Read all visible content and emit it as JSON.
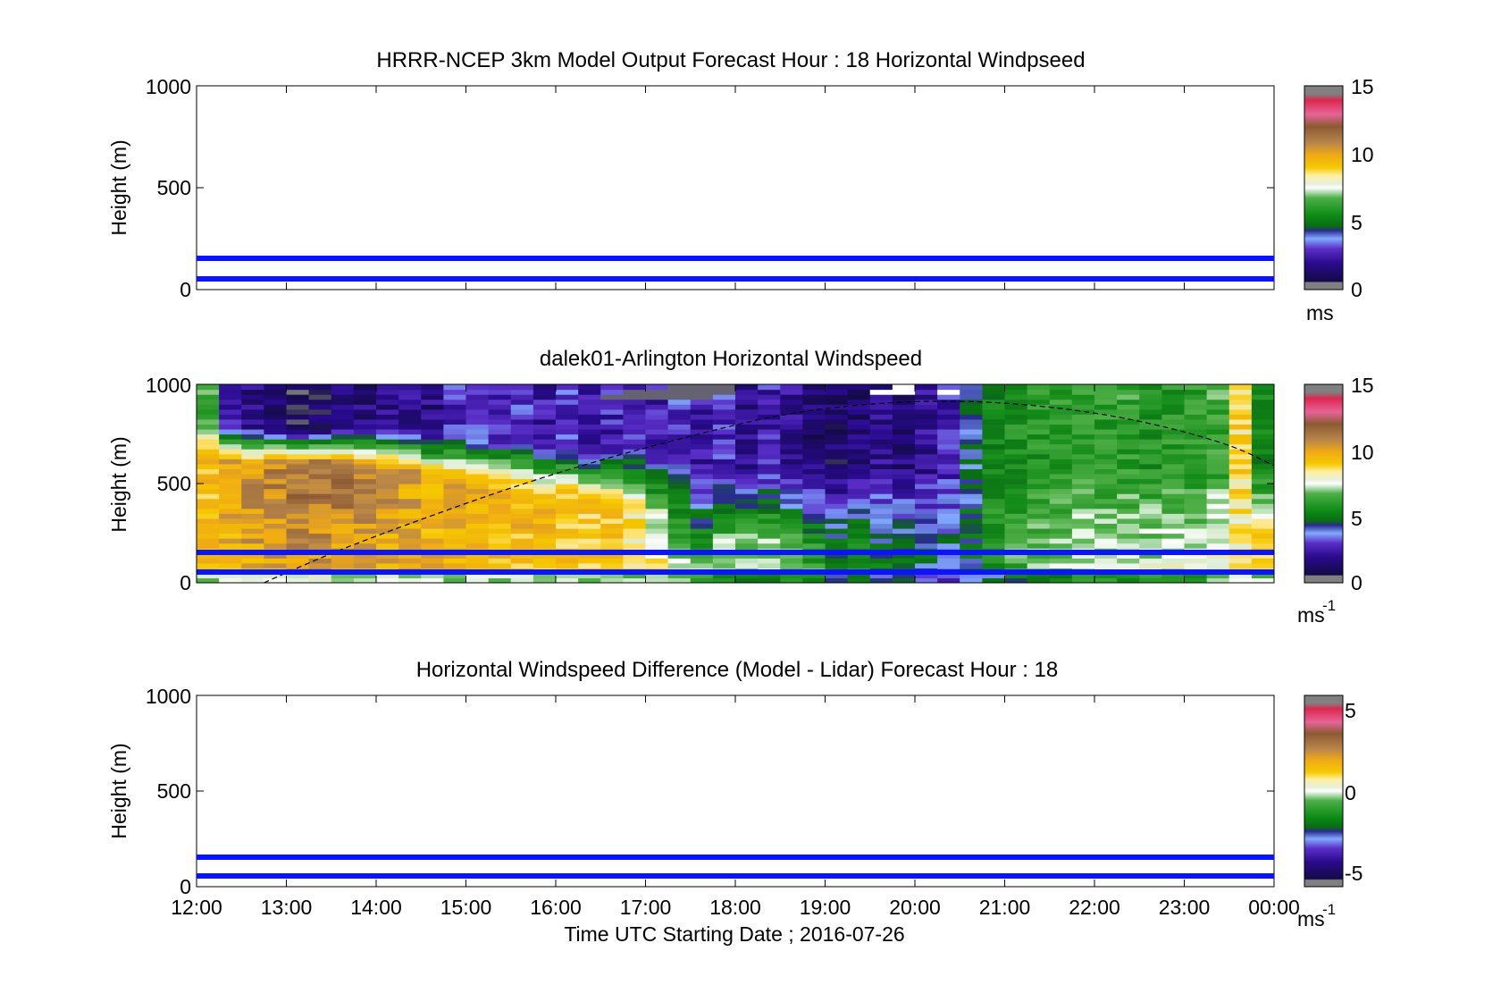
{
  "chart_data": [
    {
      "type": "heatmap",
      "title": "HRRR-NCEP 3km Model Output   Forecast Hour : 18 Horizontal Windpseed",
      "ylabel": "Height (m)",
      "xlabel": "",
      "xlim": [
        12,
        24
      ],
      "ylim": [
        0,
        1000
      ],
      "yticks": [
        "0",
        "500",
        "1000"
      ],
      "xticklabels": [],
      "reference_lines_m": [
        50,
        150
      ],
      "reference_line_color": "#0a14ff",
      "colorbar": {
        "range": [
          0,
          15
        ],
        "ticks": [
          "0",
          "5",
          "10",
          "15"
        ],
        "label": "ms"
      },
      "data_present": false
    },
    {
      "type": "heatmap",
      "title": "dalek01-Arlington  Horizontal Windspeed",
      "ylabel": "Height (m)",
      "xlabel": "",
      "xlim": [
        12,
        24
      ],
      "ylim": [
        0,
        1000
      ],
      "yticks": [
        "0",
        "500",
        "1000"
      ],
      "xticklabels": [],
      "reference_lines_m": [
        50,
        150
      ],
      "reference_line_color": "#0a14ff",
      "colorbar": {
        "range": [
          0,
          15
        ],
        "ticks": [
          "0",
          "5",
          "10",
          "15"
        ],
        "label": "ms",
        "label_superscript": "-1"
      },
      "data_present": true,
      "time_columns_hours": 48,
      "levels_per_column": 40,
      "column_profiles": [
        {
          "t": 12.0,
          "low": 9.5,
          "mid": 9.2,
          "top": 6.0,
          "bl_top": 650
        },
        {
          "t": 12.25,
          "low": 9.5,
          "mid": 9.8,
          "top": 2.0,
          "bl_top": 620
        },
        {
          "t": 12.5,
          "low": 9.6,
          "mid": 10.3,
          "top": 1.5,
          "bl_top": 610
        },
        {
          "t": 12.75,
          "low": 9.6,
          "mid": 10.6,
          "top": 1.0,
          "bl_top": 600
        },
        {
          "t": 13.0,
          "low": 9.7,
          "mid": 10.9,
          "top": 0.6,
          "bl_top": 600
        },
        {
          "t": 13.25,
          "low": 9.7,
          "mid": 11.0,
          "top": 0.8,
          "bl_top": 600
        },
        {
          "t": 13.5,
          "low": 9.6,
          "mid": 10.8,
          "top": 1.0,
          "bl_top": 610
        },
        {
          "t": 13.75,
          "low": 9.6,
          "mid": 10.5,
          "top": 1.4,
          "bl_top": 600
        },
        {
          "t": 14.0,
          "low": 9.5,
          "mid": 10.2,
          "top": 1.6,
          "bl_top": 600
        },
        {
          "t": 14.25,
          "low": 9.5,
          "mid": 9.9,
          "top": 1.8,
          "bl_top": 590
        },
        {
          "t": 14.5,
          "low": 9.4,
          "mid": 9.7,
          "top": 1.5,
          "bl_top": 560
        },
        {
          "t": 14.75,
          "low": 9.4,
          "mid": 9.6,
          "top": 2.5,
          "bl_top": 540
        },
        {
          "t": 15.0,
          "low": 9.4,
          "mid": 9.5,
          "top": 2.8,
          "bl_top": 520
        },
        {
          "t": 15.25,
          "low": 9.3,
          "mid": 9.4,
          "top": 2.2,
          "bl_top": 500
        },
        {
          "t": 15.5,
          "low": 9.3,
          "mid": 9.3,
          "top": 2.6,
          "bl_top": 480
        },
        {
          "t": 15.75,
          "low": 9.2,
          "mid": 9.2,
          "top": 2.0,
          "bl_top": 460
        },
        {
          "t": 16.0,
          "low": 9.2,
          "mid": 9.1,
          "top": 2.4,
          "bl_top": 450
        },
        {
          "t": 16.25,
          "low": 9.2,
          "mid": 9.0,
          "top": 2.0,
          "bl_top": 430
        },
        {
          "t": 16.5,
          "low": 9.1,
          "mid": 8.9,
          "top": 2.2,
          "bl_top": 420
        },
        {
          "t": 16.75,
          "low": 9.0,
          "mid": 8.6,
          "top": 2.6,
          "bl_top": 400
        },
        {
          "t": 17.0,
          "low": 8.8,
          "mid": 7.4,
          "top": 2.2,
          "bl_top": 350
        },
        {
          "t": 17.25,
          "low": 8.6,
          "mid": 6.0,
          "top": 2.6,
          "bl_top": 300
        },
        {
          "t": 17.5,
          "low": 8.4,
          "mid": 5.0,
          "top": 2.0,
          "bl_top": 250
        },
        {
          "t": 17.75,
          "low": 7.0,
          "mid": 6.5,
          "top": 2.4,
          "bl_top": 220
        },
        {
          "t": 18.0,
          "low": 6.6,
          "mid": 6.8,
          "top": 1.6,
          "bl_top": 200
        },
        {
          "t": 18.25,
          "low": 6.4,
          "mid": 7.0,
          "top": 2.2,
          "bl_top": 200
        },
        {
          "t": 18.5,
          "low": 6.6,
          "mid": 6.2,
          "top": 1.8,
          "bl_top": 200
        },
        {
          "t": 18.75,
          "low": 6.2,
          "mid": 5.4,
          "top": 1.2,
          "bl_top": 200
        },
        {
          "t": 19.0,
          "low": 5.0,
          "mid": 4.6,
          "top": 1.0,
          "bl_top": 200
        },
        {
          "t": 19.25,
          "low": 5.2,
          "mid": 5.2,
          "top": 1.2,
          "bl_top": 200
        },
        {
          "t": 19.5,
          "low": 5.0,
          "mid": 4.4,
          "top": 1.6,
          "bl_top": 200
        },
        {
          "t": 19.75,
          "low": 4.8,
          "mid": 4.2,
          "top": 1.4,
          "bl_top": 200
        },
        {
          "t": 20.0,
          "low": 4.2,
          "mid": 4.0,
          "top": 1.8,
          "bl_top": 200
        },
        {
          "t": 20.25,
          "low": 3.2,
          "mid": 3.6,
          "top": 2.2,
          "bl_top": 200
        },
        {
          "t": 20.5,
          "low": 4.0,
          "mid": 4.2,
          "top": 4.0,
          "bl_top": 200
        },
        {
          "t": 20.75,
          "low": 5.4,
          "mid": 5.6,
          "top": 5.0,
          "bl_top": 200
        },
        {
          "t": 21.0,
          "low": 5.8,
          "mid": 6.0,
          "top": 5.2,
          "bl_top": 200
        },
        {
          "t": 21.25,
          "low": 6.4,
          "mid": 6.6,
          "top": 5.4,
          "bl_top": 200
        },
        {
          "t": 21.5,
          "low": 6.6,
          "mid": 6.8,
          "top": 5.6,
          "bl_top": 200
        },
        {
          "t": 21.75,
          "low": 6.8,
          "mid": 7.0,
          "top": 5.8,
          "bl_top": 200
        },
        {
          "t": 22.0,
          "low": 7.0,
          "mid": 7.0,
          "top": 5.6,
          "bl_top": 200
        },
        {
          "t": 22.25,
          "low": 7.2,
          "mid": 6.8,
          "top": 5.8,
          "bl_top": 200
        },
        {
          "t": 22.5,
          "low": 7.4,
          "mid": 7.0,
          "top": 5.4,
          "bl_top": 200
        },
        {
          "t": 22.75,
          "low": 7.6,
          "mid": 7.2,
          "top": 5.6,
          "bl_top": 200
        },
        {
          "t": 23.0,
          "low": 7.8,
          "mid": 7.0,
          "top": 5.8,
          "bl_top": 200
        },
        {
          "t": 23.25,
          "low": 8.6,
          "mid": 7.4,
          "top": 6.0,
          "bl_top": 200
        },
        {
          "t": 23.5,
          "low": 9.0,
          "mid": 8.2,
          "top": 8.8,
          "bl_top": 200
        },
        {
          "t": 23.75,
          "low": 9.2,
          "mid": 9.0,
          "top": 5.0,
          "bl_top": 200
        }
      ],
      "curve": {
        "style": "dashed",
        "points": [
          [
            12.75,
            0
          ],
          [
            13.5,
            150
          ],
          [
            14.5,
            320
          ],
          [
            15.5,
            480
          ],
          [
            16.5,
            620
          ],
          [
            17.5,
            740
          ],
          [
            18.5,
            850
          ],
          [
            19.5,
            905
          ],
          [
            20.5,
            920
          ],
          [
            21.5,
            890
          ],
          [
            22.5,
            820
          ],
          [
            23.5,
            700
          ],
          [
            24.0,
            590
          ]
        ]
      }
    },
    {
      "type": "heatmap",
      "title": "Horizontal Windspeed Difference (Model - Lidar) Forecast Hour : 18",
      "ylabel": "Height (m)",
      "xlabel": "Time UTC  Starting Date ; 2016-07-26",
      "xlim": [
        12,
        24
      ],
      "ylim": [
        0,
        1000
      ],
      "yticks": [
        "0",
        "500",
        "1000"
      ],
      "xticklabels": [
        "12:00",
        "13:00",
        "14:00",
        "15:00",
        "16:00",
        "17:00",
        "18:00",
        "19:00",
        "20:00",
        "21:00",
        "22:00",
        "23:00",
        "00:00"
      ],
      "reference_lines_m": [
        50,
        150
      ],
      "reference_line_color": "#0a14ff",
      "colorbar": {
        "range": [
          -6,
          6
        ],
        "ticks": [
          "-5",
          "0",
          "5"
        ],
        "label": "ms",
        "label_superscript": "-1"
      },
      "data_present": false
    }
  ],
  "colormap_stops": [
    "#606060",
    "#140a46",
    "#2a0a8c",
    "#4c1eb4",
    "#82aaff",
    "#23287a",
    "#0a8a14",
    "#3fa83a",
    "#ffffff",
    "#d2e6c8",
    "#f5c800",
    "#fab20a",
    "#b8884a",
    "#825028",
    "#dc3c78",
    "#c8143c",
    "#606060"
  ]
}
